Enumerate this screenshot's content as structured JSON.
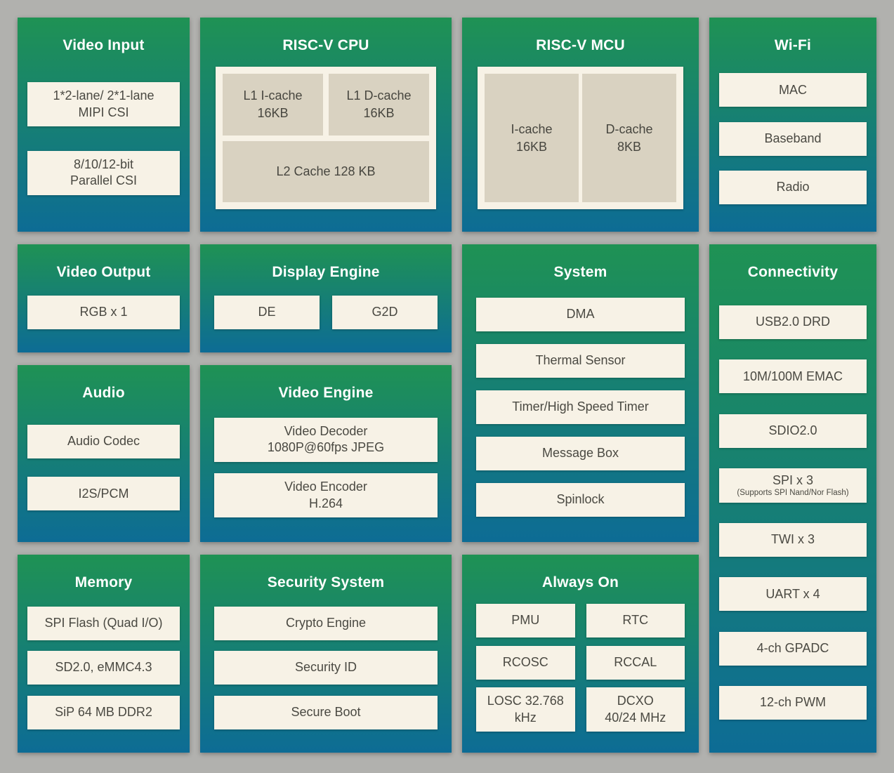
{
  "colors": {
    "background": "#b1b1ae",
    "block_gradient_top": "#1f9254",
    "block_gradient_bottom": "#0d6c95",
    "panel_bg": "#f7f2e6",
    "cache_bg": "#d9d2c1",
    "title_text": "#ffffff",
    "item_text": "#4a4942"
  },
  "blocks": {
    "video_input": {
      "title": "Video Input",
      "items": [
        "1*2-lane/ 2*1-lane\nMIPI CSI",
        "8/10/12-bit\nParallel CSI"
      ]
    },
    "video_output": {
      "title": "Video Output",
      "items": [
        "RGB x 1"
      ]
    },
    "audio": {
      "title": "Audio",
      "items": [
        "Audio Codec",
        "I2S/PCM"
      ]
    },
    "memory": {
      "title": "Memory",
      "items": [
        "SPI Flash (Quad I/O)",
        "SD2.0, eMMC4.3",
        "SiP 64 MB DDR2"
      ]
    },
    "riscv_cpu": {
      "title": "RISC-V CPU",
      "l1_icache": "L1 I-cache\n16KB",
      "l1_dcache": "L1 D-cache\n16KB",
      "l2_cache": "L2 Cache 128 KB"
    },
    "display_engine": {
      "title": "Display Engine",
      "items": [
        "DE",
        "G2D"
      ]
    },
    "video_engine": {
      "title": "Video Engine",
      "items": [
        "Video Decoder\n1080P@60fps JPEG",
        "Video Encoder\nH.264"
      ]
    },
    "security_system": {
      "title": "Security System",
      "items": [
        "Crypto Engine",
        "Security ID",
        "Secure Boot"
      ]
    },
    "riscv_mcu": {
      "title": "RISC-V MCU",
      "icache": "I-cache\n16KB",
      "dcache": "D-cache\n8KB"
    },
    "system": {
      "title": "System",
      "items": [
        "DMA",
        "Thermal Sensor",
        "Timer/High Speed Timer",
        "Message Box",
        "Spinlock"
      ]
    },
    "always_on": {
      "title": "Always On",
      "items": [
        "PMU",
        "RTC",
        "RCOSC",
        "RCCAL",
        "LOSC 32.768\nkHz",
        "DCXO\n40/24 MHz"
      ]
    },
    "wifi": {
      "title": "Wi-Fi",
      "items": [
        "MAC",
        "Baseband",
        "Radio"
      ]
    },
    "connectivity": {
      "title": "Connectivity",
      "items": [
        {
          "label": "USB2.0 DRD"
        },
        {
          "label": "10M/100M EMAC"
        },
        {
          "label": "SDIO2.0"
        },
        {
          "label": "SPI x 3",
          "sublabel": "(Supports SPI Nand/Nor Flash)"
        },
        {
          "label": "TWI x 3"
        },
        {
          "label": "UART x 4"
        },
        {
          "label": "4-ch GPADC"
        },
        {
          "label": "12-ch PWM"
        }
      ]
    }
  }
}
